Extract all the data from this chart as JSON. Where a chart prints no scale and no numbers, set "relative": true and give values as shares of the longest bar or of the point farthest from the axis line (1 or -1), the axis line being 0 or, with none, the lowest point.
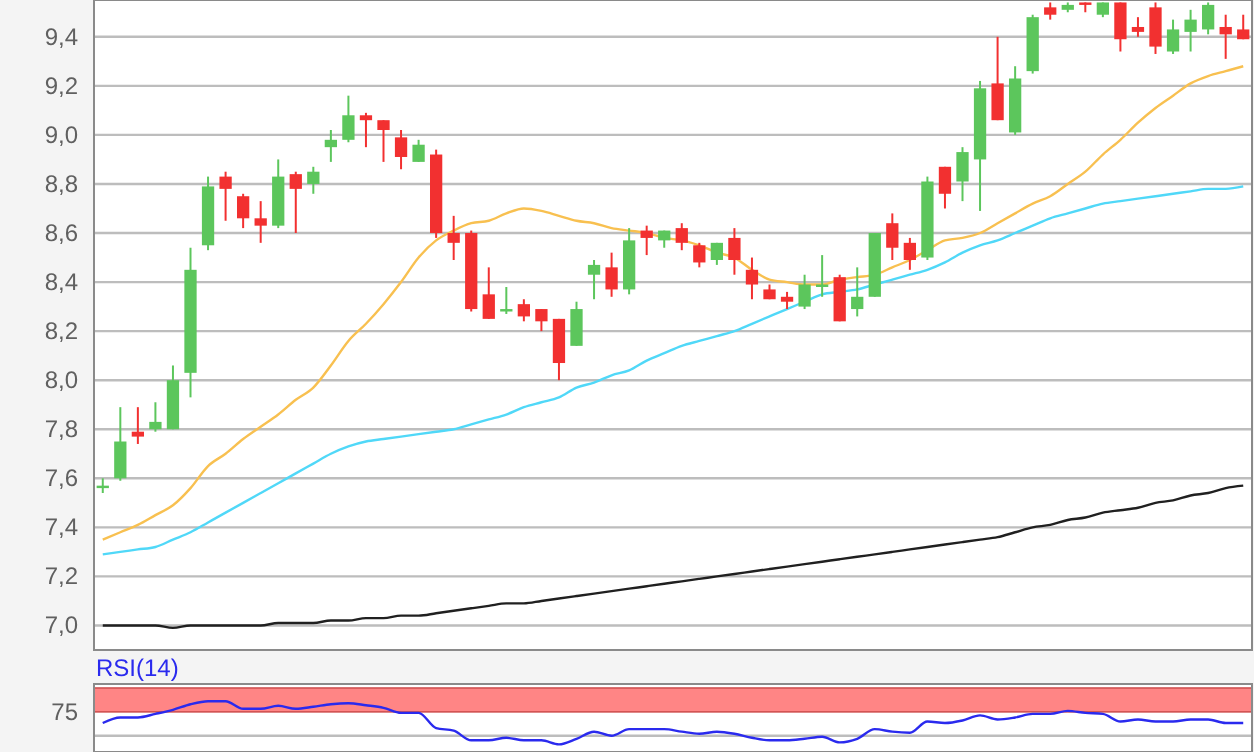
{
  "chart_data": [
    {
      "type": "candlestick",
      "categories": [
        null,
        null,
        null,
        null,
        null,
        null,
        null,
        null,
        null,
        null,
        null,
        null,
        null,
        null,
        null,
        null,
        null,
        null,
        null,
        null,
        null,
        null,
        null,
        null,
        null,
        null,
        null,
        null,
        null,
        null,
        null,
        null,
        null,
        null,
        null,
        null,
        null,
        null,
        null,
        null,
        null,
        null,
        null,
        null,
        null,
        null,
        null,
        null,
        null,
        null,
        null,
        null,
        null,
        null,
        null,
        null,
        null,
        null,
        null,
        null,
        null,
        null,
        null,
        null,
        null,
        null
      ],
      "ohlc": [
        [
          7.56,
          7.6,
          7.54,
          7.57
        ],
        [
          7.6,
          7.89,
          7.59,
          7.75
        ],
        [
          7.79,
          7.89,
          7.74,
          7.77
        ],
        [
          7.8,
          7.91,
          7.79,
          7.83
        ],
        [
          7.8,
          8.06,
          7.8,
          8.0
        ],
        [
          8.03,
          8.54,
          7.93,
          8.45
        ],
        [
          8.55,
          8.83,
          8.53,
          8.79
        ],
        [
          8.83,
          8.85,
          8.65,
          8.78
        ],
        [
          8.75,
          8.76,
          8.62,
          8.66
        ],
        [
          8.66,
          8.73,
          8.56,
          8.63
        ],
        [
          8.63,
          8.9,
          8.62,
          8.83
        ],
        [
          8.84,
          8.85,
          8.6,
          8.78
        ],
        [
          8.8,
          8.87,
          8.76,
          8.85
        ],
        [
          8.95,
          9.02,
          8.89,
          8.98
        ],
        [
          8.98,
          9.16,
          8.97,
          9.08
        ],
        [
          9.08,
          9.09,
          8.95,
          9.06
        ],
        [
          9.06,
          9.06,
          8.89,
          9.02
        ],
        [
          8.99,
          9.02,
          8.86,
          8.91
        ],
        [
          8.89,
          8.98,
          8.89,
          8.96
        ],
        [
          8.92,
          8.94,
          8.58,
          8.6
        ],
        [
          8.6,
          8.67,
          8.49,
          8.56
        ],
        [
          8.6,
          8.61,
          8.28,
          8.29
        ],
        [
          8.35,
          8.46,
          8.25,
          8.25
        ],
        [
          8.28,
          8.38,
          8.27,
          8.29
        ],
        [
          8.31,
          8.33,
          8.24,
          8.26
        ],
        [
          8.29,
          8.29,
          8.2,
          8.24
        ],
        [
          8.25,
          8.25,
          8.0,
          8.07
        ],
        [
          8.14,
          8.32,
          8.14,
          8.29
        ],
        [
          8.43,
          8.49,
          8.33,
          8.47
        ],
        [
          8.46,
          8.52,
          8.34,
          8.37
        ],
        [
          8.37,
          8.62,
          8.35,
          8.57
        ],
        [
          8.61,
          8.63,
          8.51,
          8.58
        ],
        [
          8.57,
          8.61,
          8.54,
          8.61
        ],
        [
          8.62,
          8.64,
          8.53,
          8.56
        ],
        [
          8.55,
          8.56,
          8.46,
          8.48
        ],
        [
          8.49,
          8.56,
          8.47,
          8.56
        ],
        [
          8.58,
          8.62,
          8.43,
          8.49
        ],
        [
          8.45,
          8.5,
          8.33,
          8.39
        ],
        [
          8.37,
          8.39,
          8.33,
          8.33
        ],
        [
          8.34,
          8.36,
          8.29,
          8.32
        ],
        [
          8.3,
          8.43,
          8.29,
          8.39
        ],
        [
          8.38,
          8.51,
          8.34,
          8.39
        ],
        [
          8.42,
          8.43,
          8.24,
          8.24
        ],
        [
          8.29,
          8.46,
          8.26,
          8.34
        ],
        [
          8.34,
          8.6,
          8.34,
          8.6
        ],
        [
          8.64,
          8.68,
          8.49,
          8.54
        ],
        [
          8.56,
          8.58,
          8.45,
          8.49
        ],
        [
          8.5,
          8.83,
          8.49,
          8.81
        ],
        [
          8.87,
          8.87,
          8.7,
          8.76
        ],
        [
          8.81,
          8.95,
          8.73,
          8.93
        ],
        [
          8.9,
          9.22,
          8.69,
          9.19
        ],
        [
          9.21,
          9.4,
          9.06,
          9.06
        ],
        [
          9.01,
          9.28,
          9.0,
          9.23
        ],
        [
          9.26,
          9.49,
          9.25,
          9.48
        ],
        [
          9.52,
          9.54,
          9.47,
          9.49
        ],
        [
          9.51,
          9.54,
          9.5,
          9.53
        ],
        [
          9.54,
          9.54,
          9.5,
          9.53
        ],
        [
          9.49,
          9.54,
          9.48,
          9.54
        ],
        [
          9.54,
          9.54,
          9.34,
          9.39
        ],
        [
          9.44,
          9.48,
          9.4,
          9.42
        ],
        [
          9.52,
          9.54,
          9.33,
          9.36
        ],
        [
          9.34,
          9.47,
          9.33,
          9.43
        ],
        [
          9.42,
          9.51,
          9.34,
          9.47
        ],
        [
          9.43,
          9.54,
          9.41,
          9.53
        ],
        [
          9.44,
          9.49,
          9.31,
          9.41
        ],
        [
          9.43,
          9.49,
          9.39,
          9.39
        ]
      ],
      "colors": [
        "#5cc65c",
        "#5cc65c",
        "#f23030",
        "#5cc65c",
        "#5cc65c",
        "#5cc65c",
        "#5cc65c",
        "#f23030",
        "#f23030",
        "#f23030",
        "#5cc65c",
        "#f23030",
        "#5cc65c",
        "#5cc65c",
        "#5cc65c",
        "#f23030",
        "#f23030",
        "#f23030",
        "#5cc65c",
        "#f23030",
        "#f23030",
        "#f23030",
        "#f23030",
        "#5cc65c",
        "#f23030",
        "#f23030",
        "#f23030",
        "#5cc65c",
        "#5cc65c",
        "#f23030",
        "#5cc65c",
        "#f23030",
        "#5cc65c",
        "#f23030",
        "#f23030",
        "#5cc65c",
        "#f23030",
        "#f23030",
        "#f23030",
        "#f23030",
        "#5cc65c",
        "#5cc65c",
        "#f23030",
        "#5cc65c",
        "#5cc65c",
        "#f23030",
        "#f23030",
        "#5cc65c",
        "#f23030",
        "#5cc65c",
        "#5cc65c",
        "#f23030",
        "#5cc65c",
        "#5cc65c",
        "#f23030",
        "#5cc65c",
        "#f23030",
        "#5cc65c",
        "#f23030",
        "#f23030",
        "#f23030",
        "#5cc65c",
        "#5cc65c",
        "#5cc65c",
        "#f23030",
        "#f23030"
      ],
      "series": [
        {
          "type": "line",
          "color": "#f8c050",
          "values": [
            7.35,
            7.38,
            7.41,
            7.45,
            7.49,
            7.56,
            7.65,
            7.7,
            7.76,
            7.81,
            7.86,
            7.92,
            7.97,
            8.06,
            8.16,
            8.23,
            8.31,
            8.4,
            8.5,
            8.57,
            8.61,
            8.64,
            8.65,
            8.68,
            8.7,
            8.69,
            8.67,
            8.65,
            8.64,
            8.62,
            8.61,
            8.6,
            8.58,
            8.57,
            8.55,
            8.52,
            8.5,
            8.45,
            8.41,
            8.4,
            8.39,
            8.39,
            8.41,
            8.42,
            8.43,
            8.46,
            8.49,
            8.53,
            8.57,
            8.58,
            8.6,
            8.64,
            8.68,
            8.72,
            8.75,
            8.8,
            8.85,
            8.92,
            8.98,
            9.05,
            9.11,
            9.16,
            9.21,
            9.24,
            9.26,
            9.28
          ]
        },
        {
          "type": "line",
          "color": "#50d8f8",
          "values": [
            7.29,
            7.3,
            7.31,
            7.32,
            7.35,
            7.38,
            7.42,
            7.46,
            7.5,
            7.54,
            7.58,
            7.62,
            7.66,
            7.7,
            7.73,
            7.75,
            7.76,
            7.77,
            7.78,
            7.79,
            7.8,
            7.82,
            7.84,
            7.86,
            7.89,
            7.91,
            7.93,
            7.97,
            7.99,
            8.02,
            8.04,
            8.08,
            8.11,
            8.14,
            8.16,
            8.18,
            8.2,
            8.23,
            8.26,
            8.29,
            8.32,
            8.35,
            8.36,
            8.37,
            8.39,
            8.41,
            8.43,
            8.45,
            8.48,
            8.52,
            8.55,
            8.57,
            8.6,
            8.63,
            8.66,
            8.68,
            8.7,
            8.72,
            8.73,
            8.74,
            8.75,
            8.76,
            8.77,
            8.78,
            8.78,
            8.79
          ]
        },
        {
          "type": "line",
          "color": "#202020",
          "values": [
            7.0,
            7.0,
            7.0,
            7.0,
            6.99,
            7.0,
            7.0,
            7.0,
            7.0,
            7.0,
            7.01,
            7.01,
            7.01,
            7.02,
            7.02,
            7.03,
            7.03,
            7.04,
            7.04,
            7.05,
            7.06,
            7.07,
            7.08,
            7.09,
            7.09,
            7.1,
            7.11,
            7.12,
            7.13,
            7.14,
            7.15,
            7.16,
            7.17,
            7.18,
            7.19,
            7.2,
            7.21,
            7.22,
            7.23,
            7.24,
            7.25,
            7.26,
            7.27,
            7.28,
            7.29,
            7.3,
            7.31,
            7.32,
            7.33,
            7.34,
            7.35,
            7.36,
            7.38,
            7.4,
            7.41,
            7.43,
            7.44,
            7.46,
            7.47,
            7.48,
            7.5,
            7.51,
            7.53,
            7.54,
            7.56,
            7.57
          ]
        }
      ],
      "ylim": [
        6.9,
        9.55
      ],
      "yticks": [
        {
          "value": 7.0,
          "label": "7,0"
        },
        {
          "value": 7.2,
          "label": "7,2"
        },
        {
          "value": 7.4,
          "label": "7,4"
        },
        {
          "value": 7.6,
          "label": "7,6"
        },
        {
          "value": 7.8,
          "label": "7,8"
        },
        {
          "value": 8.0,
          "label": "8,0"
        },
        {
          "value": 8.2,
          "label": "8,2"
        },
        {
          "value": 8.4,
          "label": "8,4"
        },
        {
          "value": 8.6,
          "label": "8,6"
        },
        {
          "value": 8.8,
          "label": "8,8"
        },
        {
          "value": 9.0,
          "label": "9,0"
        },
        {
          "value": 9.2,
          "label": "9,2"
        },
        {
          "value": 9.4,
          "label": "9,4"
        }
      ],
      "grid": "y",
      "tick_labels": "y"
    },
    {
      "type": "line",
      "title": "RSI(14)",
      "categories": [
        null,
        null,
        null,
        null,
        null,
        null,
        null,
        null,
        null,
        null,
        null,
        null,
        null,
        null,
        null,
        null,
        null,
        null,
        null,
        null,
        null,
        null,
        null,
        null,
        null,
        null,
        null,
        null,
        null,
        null,
        null,
        null,
        null,
        null,
        null,
        null,
        null,
        null,
        null,
        null,
        null,
        null,
        null,
        null,
        null,
        null,
        null,
        null,
        null,
        null,
        null,
        null,
        null,
        null,
        null,
        null,
        null,
        null,
        null,
        null,
        null,
        null,
        null,
        null,
        null,
        null
      ],
      "series": [
        {
          "color": "#2a2aee",
          "values": [
            0.57,
            0.68,
            0.68,
            0.75,
            0.83,
            0.94,
            1,
            1,
            0.85,
            0.85,
            0.91,
            0.85,
            0.89,
            0.94,
            0.96,
            0.92,
            0.87,
            0.77,
            0.77,
            0.47,
            0.42,
            0.23,
            0.23,
            0.28,
            0.23,
            0.23,
            0.15,
            0.26,
            0.4,
            0.32,
            0.45,
            0.45,
            0.45,
            0.4,
            0.36,
            0.4,
            0.36,
            0.28,
            0.23,
            0.23,
            0.26,
            0.3,
            0.19,
            0.26,
            0.45,
            0.4,
            0.38,
            0.6,
            0.57,
            0.62,
            0.72,
            0.64,
            0.68,
            0.75,
            0.75,
            0.81,
            0.77,
            0.75,
            0.6,
            0.64,
            0.6,
            0.6,
            0.64,
            0.64,
            0.57,
            0.57
          ]
        }
      ],
      "relative": true,
      "bands": [
        {
          "axis": "y",
          "from": 0.79,
          "to": 1.26,
          "color": "#ff8585",
          "label": "75"
        }
      ],
      "ref_lines": [
        {
          "axis": "y",
          "value": 0.32,
          "color": "#bdbdbd"
        }
      ]
    }
  ]
}
